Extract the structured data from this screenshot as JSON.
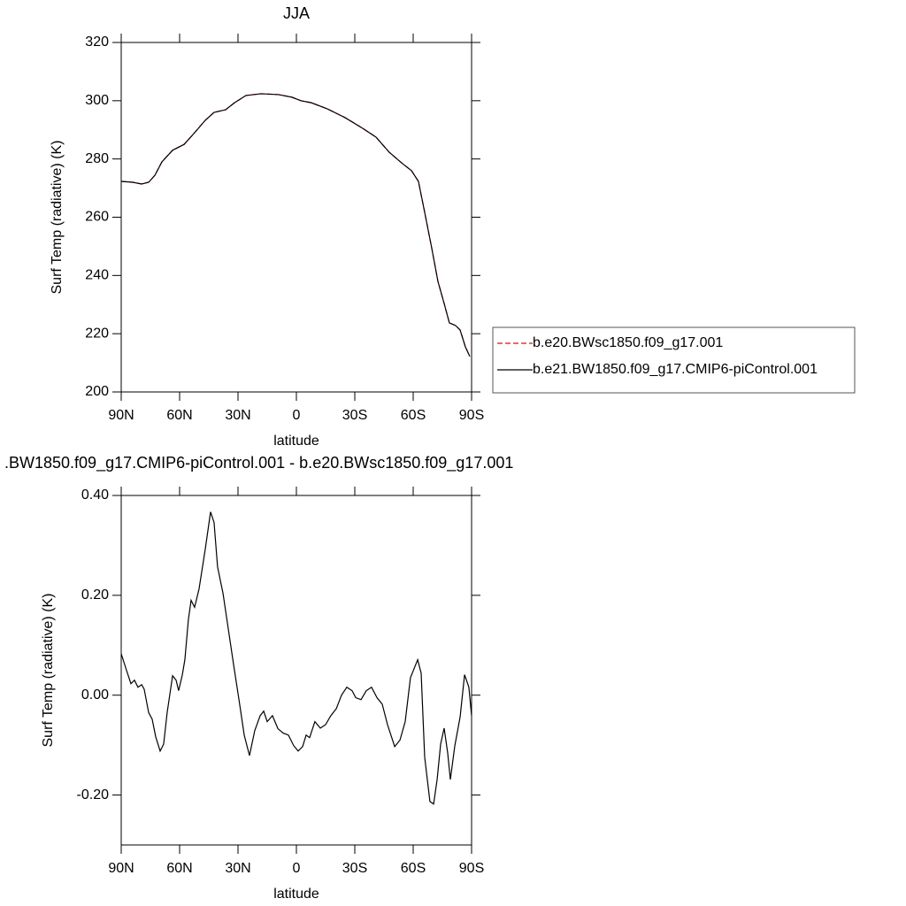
{
  "chart_data": [
    {
      "type": "line",
      "title": "JJA",
      "xlabel": "latitude",
      "ylabel": "Surf Temp (radiative) (K)",
      "x": [
        90,
        84.1,
        79.5,
        75.9,
        72.7,
        69.1,
        63.6,
        57.7,
        52.3,
        46.8,
        42.3,
        36.4,
        31.8,
        25.9,
        18.2,
        9.1,
        2.3,
        -2.3,
        -7.7,
        -15.9,
        -25,
        -34.1,
        -40.9,
        -47.7,
        -54.5,
        -59.1,
        -62.7,
        -65.9,
        -69.5,
        -72.7,
        -75.9,
        -78.6,
        -81.8,
        -84.1,
        -86.8,
        -89.1
      ],
      "series": [
        {
          "name": "b.e20.BWsc1850.f09_g17.001",
          "color": "#ff0000",
          "linestyle": "dashed",
          "values": [
            272.3,
            272,
            271.4,
            272,
            274.4,
            279,
            283,
            285,
            289,
            293.3,
            296,
            296.9,
            299.3,
            301.8,
            302.4,
            302.1,
            301.2,
            300,
            299.3,
            297.2,
            294.2,
            290.5,
            287.5,
            282.3,
            278.4,
            276,
            272.3,
            261.7,
            249.5,
            238,
            230.4,
            223.7,
            222.8,
            221.3,
            215.5,
            212.2
          ]
        },
        {
          "name": "b.e21.BW1850.f09_g17.CMIP6-piControl.001",
          "color": "#000000",
          "linestyle": "solid",
          "values": [
            272.3,
            272,
            271.4,
            272,
            274.4,
            279,
            283,
            285,
            289,
            293.3,
            296,
            296.9,
            299.3,
            301.8,
            302.4,
            302.1,
            301.2,
            300,
            299.3,
            297.2,
            294.2,
            290.5,
            287.5,
            282.3,
            278.4,
            276,
            272.3,
            261.7,
            249.5,
            238,
            230.4,
            223.7,
            222.8,
            221.3,
            215.5,
            212.2
          ]
        }
      ],
      "xlim": [
        90,
        -90
      ],
      "xticks": [
        {
          "value": 90,
          "label": "90N"
        },
        {
          "value": 60,
          "label": "60N"
        },
        {
          "value": 30,
          "label": "30N"
        },
        0,
        {
          "value": -30,
          "label": "30S"
        },
        {
          "value": -60,
          "label": "60S"
        },
        {
          "value": -90,
          "label": "90S"
        }
      ],
      "ylim": [
        200,
        320
      ],
      "yticks": [
        200,
        220,
        240,
        260,
        280,
        300,
        320
      ],
      "legend": "outside-right"
    },
    {
      "type": "line",
      "title": ".BW1850.f09_g17.CMIP6-piControl.001 - b.e20.BWsc1850.f09_g17.001",
      "xlabel": "latitude",
      "ylabel": "Surf Temp (radiative) (K)",
      "x": [
        90,
        87.3,
        85,
        83.2,
        81.4,
        79.5,
        78.2,
        75.9,
        74.1,
        72.3,
        70,
        68.2,
        66.4,
        63.6,
        61.8,
        60.5,
        58.6,
        57.3,
        55.5,
        54.1,
        52.3,
        50,
        46.8,
        44.1,
        42.3,
        40.5,
        37.7,
        35,
        32.3,
        29.5,
        26.8,
        24.1,
        21.4,
        18.6,
        16.8,
        15,
        12.3,
        9.5,
        6.8,
        4.1,
        1.4,
        -0.9,
        -3.2,
        -5,
        -6.8,
        -9.5,
        -12.3,
        -15,
        -17.7,
        -20.5,
        -23.2,
        -25.9,
        -28.6,
        -30.5,
        -33.2,
        -35.9,
        -38.6,
        -41.4,
        -44.1,
        -46.8,
        -50.5,
        -53.2,
        -55.9,
        -58.6,
        -62.3,
        -64.1,
        -65.9,
        -68.6,
        -70.5,
        -72.3,
        -74.1,
        -75.9,
        -77.7,
        -79.1,
        -81.4,
        -84.1,
        -86.4,
        -88.6,
        -90
      ],
      "values": [
        0.083,
        0.05,
        0.023,
        0.03,
        0.016,
        0.021,
        0.012,
        -0.035,
        -0.048,
        -0.083,
        -0.112,
        -0.098,
        -0.035,
        0.039,
        0.03,
        0.009,
        0.041,
        0.071,
        0.151,
        0.19,
        0.176,
        0.213,
        0.293,
        0.367,
        0.346,
        0.257,
        0.204,
        0.133,
        0.062,
        -0.009,
        -0.08,
        -0.121,
        -0.071,
        -0.041,
        -0.032,
        -0.053,
        -0.041,
        -0.067,
        -0.076,
        -0.08,
        -0.101,
        -0.112,
        -0.103,
        -0.08,
        -0.085,
        -0.053,
        -0.066,
        -0.059,
        -0.041,
        -0.027,
        0,
        0.016,
        0.009,
        -0.005,
        -0.009,
        0.009,
        0.016,
        -0.005,
        -0.018,
        -0.059,
        -0.103,
        -0.09,
        -0.053,
        0.035,
        0.071,
        0.044,
        -0.124,
        -0.213,
        -0.218,
        -0.169,
        -0.098,
        -0.066,
        -0.115,
        -0.169,
        -0.101,
        -0.044,
        0.041,
        0.016,
        -0.041
      ],
      "color": "#000000",
      "xlim": [
        90,
        -90
      ],
      "xticks": [
        {
          "value": 90,
          "label": "90N"
        },
        {
          "value": 60,
          "label": "60N"
        },
        {
          "value": 30,
          "label": "30N"
        },
        0,
        {
          "value": -30,
          "label": "30S"
        },
        {
          "value": -60,
          "label": "60S"
        },
        {
          "value": -90,
          "label": "90S"
        }
      ],
      "ylim": [
        -0.3,
        0.4
      ],
      "yticks": [
        {
          "value": -0.2,
          "label": "-0.20"
        },
        {
          "value": 0,
          "label": "0.00"
        },
        {
          "value": 0.2,
          "label": "0.20"
        },
        {
          "value": 0.4,
          "label": "0.40"
        }
      ]
    }
  ]
}
